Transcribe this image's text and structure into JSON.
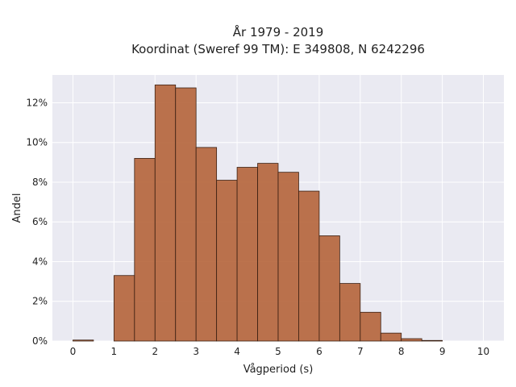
{
  "chart_data": {
    "type": "bar",
    "title_lines": [
      "År 1979 - 2019",
      "Koordinat (Sweref 99 TM): E 349808, N 6242296"
    ],
    "xlabel": "Vågperiod (s)",
    "ylabel": "Andel",
    "bin_width": 0.5,
    "bins": [
      {
        "start": 0.0,
        "value": 0.05
      },
      {
        "start": 1.0,
        "value": 3.3
      },
      {
        "start": 1.5,
        "value": 9.2
      },
      {
        "start": 2.0,
        "value": 12.9
      },
      {
        "start": 2.5,
        "value": 12.75
      },
      {
        "start": 3.0,
        "value": 9.75
      },
      {
        "start": 3.5,
        "value": 8.1
      },
      {
        "start": 4.0,
        "value": 8.75
      },
      {
        "start": 4.5,
        "value": 8.95
      },
      {
        "start": 5.0,
        "value": 8.5
      },
      {
        "start": 5.5,
        "value": 7.55
      },
      {
        "start": 6.0,
        "value": 5.3
      },
      {
        "start": 6.5,
        "value": 2.9
      },
      {
        "start": 7.0,
        "value": 1.45
      },
      {
        "start": 7.5,
        "value": 0.4
      },
      {
        "start": 8.0,
        "value": 0.12
      },
      {
        "start": 8.5,
        "value": 0.03
      }
    ],
    "xlim": [
      -0.5,
      10.5
    ],
    "ylim": [
      0,
      13.4
    ],
    "x_ticks": [
      0,
      1,
      2,
      3,
      4,
      5,
      6,
      7,
      8,
      9,
      10
    ],
    "y_ticks": [
      0,
      2,
      4,
      6,
      8,
      10,
      12
    ],
    "y_tick_format": "percent",
    "grid": true,
    "colors": {
      "bar_fill": "#b5643a",
      "bar_edge": "#3a1f12",
      "plot_background": "#eaeaf2",
      "grid": "#ffffff"
    }
  }
}
